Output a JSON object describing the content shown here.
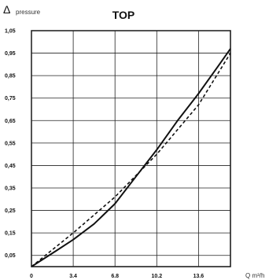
{
  "chart_data": {
    "type": "line",
    "title": "TOP",
    "ylabel_symbol": "Δ",
    "ylabel_text": "pressure",
    "xlabel": "Q m³/h",
    "xlim": [
      0,
      16.2
    ],
    "ylim": [
      0,
      1.05
    ],
    "grid": true,
    "x_ticks": [
      0,
      3.4,
      6.8,
      10.2,
      13.6
    ],
    "x_tick_labels": [
      "0",
      "3.4",
      "6.8",
      "10.2",
      "13.6"
    ],
    "y_ticks": [
      0.05,
      0.15,
      0.25,
      0.35,
      0.45,
      0.55,
      0.65,
      0.75,
      0.85,
      0.95,
      1.05
    ],
    "y_tick_labels": [
      "0,05",
      "0,15",
      "0,25",
      "0,35",
      "0,45",
      "0,55",
      "0,65",
      "0,75",
      "0,85",
      "0,95",
      "1,05"
    ],
    "series": [
      {
        "style": "solid",
        "x": [
          0,
          2.0,
          3.4,
          5.1,
          6.8,
          8.5,
          10.2,
          11.9,
          13.6,
          15.3,
          16.2
        ],
        "y": [
          0,
          0.07,
          0.12,
          0.19,
          0.28,
          0.4,
          0.52,
          0.65,
          0.77,
          0.9,
          0.97
        ]
      },
      {
        "style": "dashed",
        "x": [
          0,
          3.4,
          6.8,
          10.2,
          13.6,
          16.2
        ],
        "y": [
          0,
          0.15,
          0.31,
          0.5,
          0.72,
          0.95
        ]
      }
    ]
  }
}
